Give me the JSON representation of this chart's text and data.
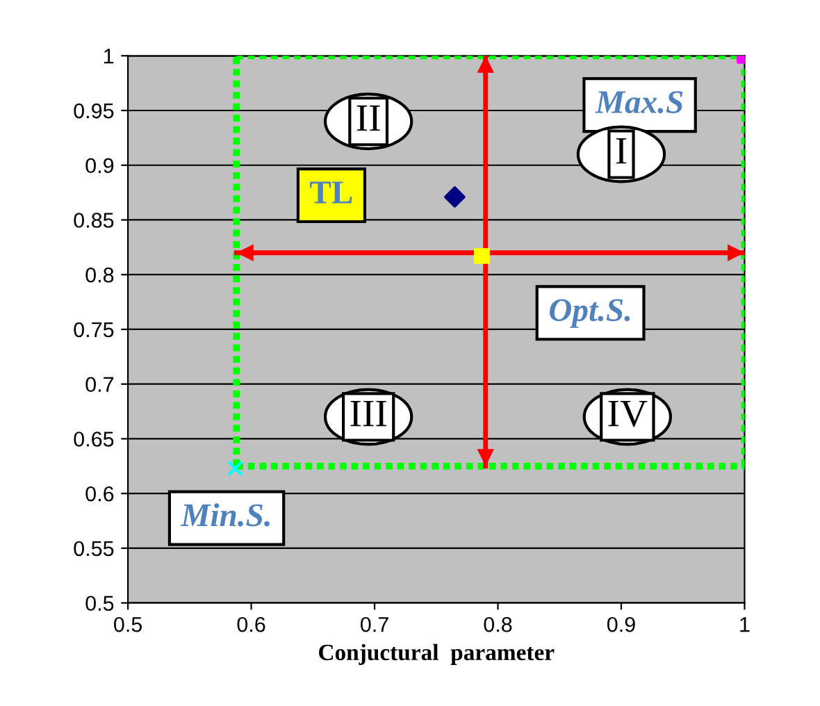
{
  "chart_data": {
    "type": "scatter",
    "xlabel": "Conjuctural  parameter",
    "xlim": [
      0.5,
      1
    ],
    "xticks": [
      0.5,
      0.6,
      0.7,
      0.8,
      0.9,
      1
    ],
    "ylim": [
      0.5,
      1
    ],
    "yticks": [
      0.5,
      0.55,
      0.6,
      0.65,
      0.7,
      0.75,
      0.8,
      0.85,
      0.9,
      0.95,
      1
    ],
    "grid": "y",
    "series": [
      {
        "color": "#000080",
        "marker": "diamond",
        "x": [
          0.765
        ],
        "values": [
          0.871
        ]
      },
      {
        "color": "#ff00ff",
        "marker": "square",
        "x": [
          1
        ],
        "values": [
          1
        ]
      },
      {
        "color": "#00ffff",
        "marker": "cross",
        "x": [
          0.587
        ],
        "values": [
          0.623
        ]
      },
      {
        "color": "#ffff00",
        "marker": "square",
        "x": [
          0.787
        ],
        "values": [
          0.817
        ]
      }
    ],
    "ref_lines": [
      {
        "axis": "x",
        "value": 0.588,
        "color": "#00ff00",
        "line_style": "dotted"
      },
      {
        "axis": "x",
        "value": 1,
        "color": "#00ff00",
        "line_style": "dotted"
      },
      {
        "axis": "y",
        "value": 0.625,
        "color": "#00ff00",
        "line_style": "dotted"
      },
      {
        "axis": "y",
        "value": 1,
        "color": "#00ff00",
        "line_style": "dotted"
      },
      {
        "axis": "x",
        "value": 0.79,
        "color": "#ff0000",
        "line_style": "solid"
      },
      {
        "axis": "y",
        "value": 0.82,
        "color": "#ff0000",
        "line_style": "solid"
      }
    ],
    "annotations": [
      "TL",
      "Max.S",
      "Min.S.",
      "Opt.S.",
      "I",
      "II",
      "III",
      "IV"
    ]
  }
}
